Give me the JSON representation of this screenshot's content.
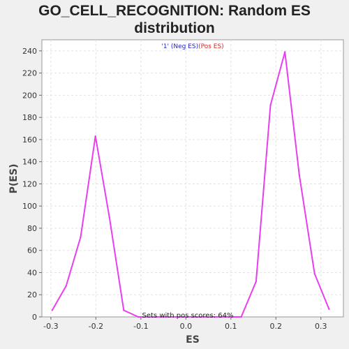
{
  "chart_data": {
    "type": "line",
    "title_lines": [
      "GO_CELL_RECOGNITION: Random ES",
      "distribution"
    ],
    "xlabel": "ES",
    "ylabel": "P(ES)",
    "xlim": [
      -0.32,
      0.35
    ],
    "ylim": [
      0,
      250
    ],
    "x_ticks": [
      -0.3,
      -0.2,
      -0.1,
      0.0,
      0.1,
      0.2,
      0.3
    ],
    "x_tick_labels": [
      "-0.3",
      "-0.2",
      "-0.1",
      "0.0",
      "0.1",
      "0.2",
      "0.3"
    ],
    "y_ticks": [
      0,
      20,
      40,
      60,
      80,
      100,
      120,
      140,
      160,
      180,
      200,
      220,
      240
    ],
    "grid": true,
    "series_color": "#e83ef0",
    "x": [
      -0.297,
      -0.266,
      -0.234,
      -0.201,
      -0.17,
      -0.138,
      -0.106,
      -0.074,
      -0.042,
      -0.01,
      0.022,
      0.054,
      0.086,
      0.123,
      0.156,
      0.188,
      0.22,
      0.252,
      0.286,
      0.318
    ],
    "y": [
      6,
      28,
      72,
      163,
      90,
      6,
      0,
      0,
      0,
      0,
      0,
      0,
      0,
      0,
      32,
      191,
      239,
      128,
      39,
      7
    ],
    "legend": {
      "placement": "top-center",
      "entries": [
        {
          "text": "'1' (Neg ES)",
          "color": "#2222cc"
        },
        {
          "text": "(Pos ES)",
          "color": "#dd2222"
        }
      ]
    },
    "annotation": "Sets with pos scores: 64%"
  }
}
